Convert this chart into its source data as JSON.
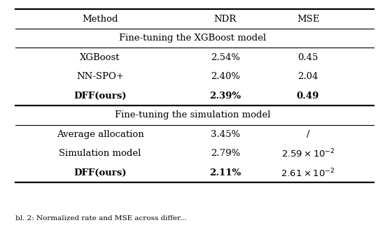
{
  "col_headers": [
    "Method",
    "NDR",
    "MSE"
  ],
  "section1_label": "Fine-tuning the XGBoost model",
  "section2_label": "Fine-tuning the simulation model",
  "rows_section1": [
    {
      "method": "XGBoost",
      "ndr": "2.54%",
      "mse": "0.45",
      "bold": false
    },
    {
      "method": "NN-SPO+",
      "ndr": "2.40%",
      "mse": "2.04",
      "bold": false
    },
    {
      "method": "DFF(ours)",
      "ndr": "2.39%",
      "mse": "0.49",
      "bold": true
    }
  ],
  "rows_section2": [
    {
      "method": "Average allocation",
      "ndr": "3.45%",
      "mse": "/",
      "bold": false
    },
    {
      "method": "Simulation model",
      "ndr": "2.79%",
      "mse": "2.59e-2",
      "bold": false
    },
    {
      "method": "DFF(ours)",
      "ndr": "2.11%",
      "mse": "2.61e-2",
      "bold": true
    }
  ],
  "bg_color": "#ffffff",
  "text_color": "#000000",
  "font_size": 9.5,
  "caption": "bl. 2: Normalized rate and MSE across differ..."
}
